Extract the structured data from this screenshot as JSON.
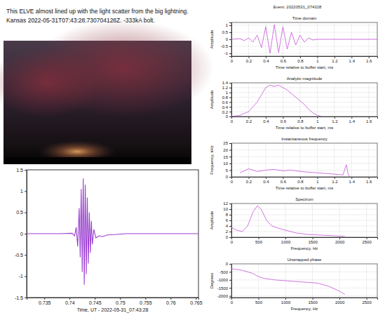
{
  "caption": [
    "This ELVE almost lined up with the light scatter from the big lightning.",
    "Kansas 2022-05-31T07:43:28.730704128Z. -333kA bolt."
  ],
  "header": {
    "title": "Event: 20220531_074328"
  },
  "chart_data": [
    {
      "type": "line",
      "x_label": "Time, UT - 2022-05-31_07:43:28",
      "color": "#9a3fd0",
      "grid": false,
      "x": [
        0.7315,
        0.735,
        0.738,
        0.7405,
        0.741,
        0.7413,
        0.7416,
        0.7419,
        0.7421,
        0.7423,
        0.7425,
        0.7427,
        0.7429,
        0.7431,
        0.7433,
        0.7435,
        0.7437,
        0.7439,
        0.7441,
        0.7443,
        0.7445,
        0.7448,
        0.7452,
        0.7458,
        0.7465,
        0.7475,
        0.749,
        0.751,
        0.755,
        0.76,
        0.7655
      ],
      "values": [
        0,
        0,
        0,
        0.01,
        -0.05,
        0.15,
        -0.3,
        0.6,
        -0.55,
        1.05,
        -0.9,
        1.3,
        -1.2,
        1.15,
        -0.95,
        0.85,
        -0.7,
        0.5,
        -0.45,
        0.3,
        -0.25,
        0.1,
        -0.1,
        -0.05,
        -0.07,
        -0.03,
        -0.02,
        0,
        0,
        0,
        0
      ],
      "xlim": [
        0.7315,
        0.7655
      ],
      "xticks": [
        0.735,
        0.74,
        0.745,
        0.75,
        0.755,
        0.76,
        0.765
      ],
      "ylim": [
        -1.5,
        1.5
      ],
      "yticks": [
        -1.5,
        -1,
        -0.5,
        0,
        0.5,
        1,
        1.5
      ]
    },
    {
      "type": "line",
      "title": "Time domain",
      "x_label": "Time relative to buffer start, ms",
      "y_label": "Amplitude",
      "color": "#cc66dd",
      "grid": true,
      "x": [
        0,
        0.1,
        0.15,
        0.2,
        0.25,
        0.3,
        0.35,
        0.4,
        0.45,
        0.5,
        0.55,
        0.6,
        0.65,
        0.7,
        0.75,
        0.8,
        0.85,
        0.9,
        0.95,
        1.0,
        1.2,
        1.4,
        1.7
      ],
      "values": [
        0,
        0.05,
        -0.1,
        0.1,
        -0.2,
        0.3,
        -0.6,
        0.9,
        -1.0,
        1.05,
        -0.95,
        0.9,
        -0.7,
        0.5,
        -0.4,
        0.3,
        -0.2,
        0.1,
        -0.05,
        0,
        0,
        0,
        0
      ],
      "xlim": [
        0,
        1.7
      ],
      "xticks": [
        0,
        0.2,
        0.4,
        0.6,
        0.8,
        1,
        1.2,
        1.4,
        1.6
      ],
      "ylim": [
        -1.2,
        1.2
      ],
      "yticks": [
        -1,
        -0.5,
        0,
        0.5,
        1
      ]
    },
    {
      "type": "line",
      "title": "Analytic magnitude",
      "x_label": "Time relative to buffer start, ms",
      "y_label": "Amplitude",
      "color": "#cc66dd",
      "grid": true,
      "x": [
        0,
        0.1,
        0.2,
        0.3,
        0.35,
        0.4,
        0.45,
        0.5,
        0.55,
        0.6,
        0.65,
        0.7,
        0.75,
        0.8,
        0.85,
        0.9,
        0.95,
        1.0,
        1.05
      ],
      "values": [
        0,
        0.05,
        0.2,
        0.6,
        0.9,
        1.2,
        1.3,
        1.25,
        1.3,
        1.2,
        1.1,
        0.95,
        0.8,
        0.65,
        0.5,
        0.3,
        0.15,
        0.05,
        0
      ],
      "xlim": [
        0,
        1.7
      ],
      "xticks": [
        0,
        0.2,
        0.4,
        0.6,
        0.8,
        1,
        1.2,
        1.4,
        1.6
      ],
      "ylim": [
        0,
        1.4
      ],
      "yticks": [
        0,
        0.2,
        0.4,
        0.6,
        0.8,
        1,
        1.2,
        1.4
      ]
    },
    {
      "type": "line",
      "title": "Instantaneous frequency",
      "x_label": "Time relative to buffer start, ms",
      "y_label": "Frequency, kHz",
      "color": "#cc66dd",
      "grid": true,
      "x": [
        0.1,
        0.2,
        0.3,
        0.4,
        0.5,
        0.6,
        0.7,
        0.8,
        0.9,
        1.0,
        1.1,
        1.2,
        1.3,
        1.34,
        1.36,
        1.38
      ],
      "values": [
        3,
        6,
        4,
        5,
        5.5,
        4.5,
        5,
        4,
        3.5,
        3,
        2.5,
        2,
        1.5,
        9,
        2,
        0
      ],
      "xlim": [
        0,
        1.7
      ],
      "xticks": [
        0,
        0.2,
        0.4,
        0.6,
        0.8,
        1,
        1.2,
        1.4,
        1.6
      ],
      "ylim": [
        0,
        25
      ],
      "yticks": [
        0,
        5,
        10,
        15,
        20,
        25
      ]
    },
    {
      "type": "line",
      "title": "Spectrum",
      "x_label": "Frequency, Hz",
      "y_label": "Amplitude",
      "color": "#cc66dd",
      "grid": true,
      "x": [
        0,
        100,
        200,
        300,
        400,
        480,
        550,
        650,
        750,
        900,
        1000,
        1200,
        1400,
        1600,
        1800,
        2000,
        2100
      ],
      "values": [
        3.5,
        2.5,
        2,
        4,
        9,
        11.2,
        10,
        6,
        4,
        3,
        2.5,
        1.5,
        1,
        0.8,
        0.6,
        0.4,
        0.3
      ],
      "xlim": [
        0,
        2700
      ],
      "xticks": [
        0,
        500,
        1000,
        1500,
        2000,
        2500
      ],
      "ylim": [
        0,
        12
      ],
      "yticks": [
        0,
        2,
        4,
        6,
        8,
        10,
        12
      ]
    },
    {
      "type": "line",
      "title": "Unwrapped phase",
      "x_label": "Frequency, Hz",
      "y_label": "Degrees",
      "color": "#cc66dd",
      "grid": true,
      "x": [
        0,
        200,
        400,
        500,
        600,
        800,
        1000,
        1200,
        1400,
        1600,
        1800,
        2000,
        2100
      ],
      "values": [
        -300,
        -400,
        -600,
        -800,
        -900,
        -1000,
        -1050,
        -1100,
        -1150,
        -1200,
        -1400,
        -1700,
        -1900
      ],
      "xlim": [
        0,
        2700
      ],
      "xticks": [
        0,
        500,
        1000,
        1500,
        2000,
        2500
      ],
      "ylim": [
        -2100,
        0
      ],
      "yticks": [
        -2000,
        -1500,
        -1000,
        -500,
        0
      ]
    }
  ]
}
